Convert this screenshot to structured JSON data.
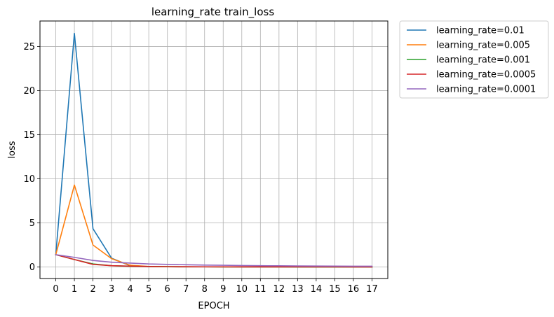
{
  "chart_data": {
    "type": "line",
    "title": "learning_rate train_loss",
    "xlabel": "EPOCH",
    "ylabel": "loss",
    "x": [
      0,
      1,
      2,
      3,
      4,
      5,
      6,
      7,
      8,
      9,
      10,
      11,
      12,
      13,
      14,
      15,
      16,
      17
    ],
    "xticks": [
      "0",
      "1",
      "2",
      "3",
      "4",
      "5",
      "6",
      "7",
      "8",
      "9",
      "10",
      "11",
      "12",
      "13",
      "14",
      "15",
      "16",
      "17"
    ],
    "yticks": [
      "0",
      "5",
      "10",
      "15",
      "20",
      "25"
    ],
    "xlim": [
      -0.85,
      17.85
    ],
    "ylim": [
      -1.3,
      27.9
    ],
    "grid": true,
    "legend_position": "outside-upper-right",
    "series": [
      {
        "name": "learning_rate=0.01",
        "color": "#1f77b4",
        "values": [
          1.4,
          26.5,
          4.35,
          1.0,
          0.15,
          0.05,
          0.03,
          0.02,
          0.02,
          0.01,
          0.01,
          0.01,
          0.01,
          0.01,
          0.01,
          0.01,
          0.01,
          0.01
        ]
      },
      {
        "name": "learning_rate=0.005",
        "color": "#ff7f0e",
        "values": [
          1.4,
          9.3,
          2.5,
          0.95,
          0.2,
          0.06,
          0.03,
          0.02,
          0.02,
          0.01,
          0.01,
          0.01,
          0.01,
          0.01,
          0.01,
          0.01,
          0.01,
          0.01
        ]
      },
      {
        "name": "learning_rate=0.001",
        "color": "#2ca02c",
        "values": [
          1.4,
          0.85,
          0.35,
          0.15,
          0.08,
          0.05,
          0.04,
          0.03,
          0.03,
          0.02,
          0.02,
          0.02,
          0.02,
          0.01,
          0.01,
          0.01,
          0.01,
          0.01
        ]
      },
      {
        "name": "learning_rate=0.0005",
        "color": "#d62728",
        "values": [
          1.4,
          0.85,
          0.3,
          0.15,
          0.1,
          0.06,
          0.05,
          0.04,
          0.03,
          0.03,
          0.02,
          0.02,
          0.02,
          0.02,
          0.02,
          0.02,
          0.01,
          0.01
        ]
      },
      {
        "name": "learning_rate=0.0001",
        "color": "#9467bd",
        "values": [
          1.4,
          1.1,
          0.75,
          0.55,
          0.45,
          0.35,
          0.3,
          0.26,
          0.22,
          0.2,
          0.17,
          0.15,
          0.14,
          0.12,
          0.11,
          0.1,
          0.09,
          0.09
        ]
      }
    ]
  }
}
